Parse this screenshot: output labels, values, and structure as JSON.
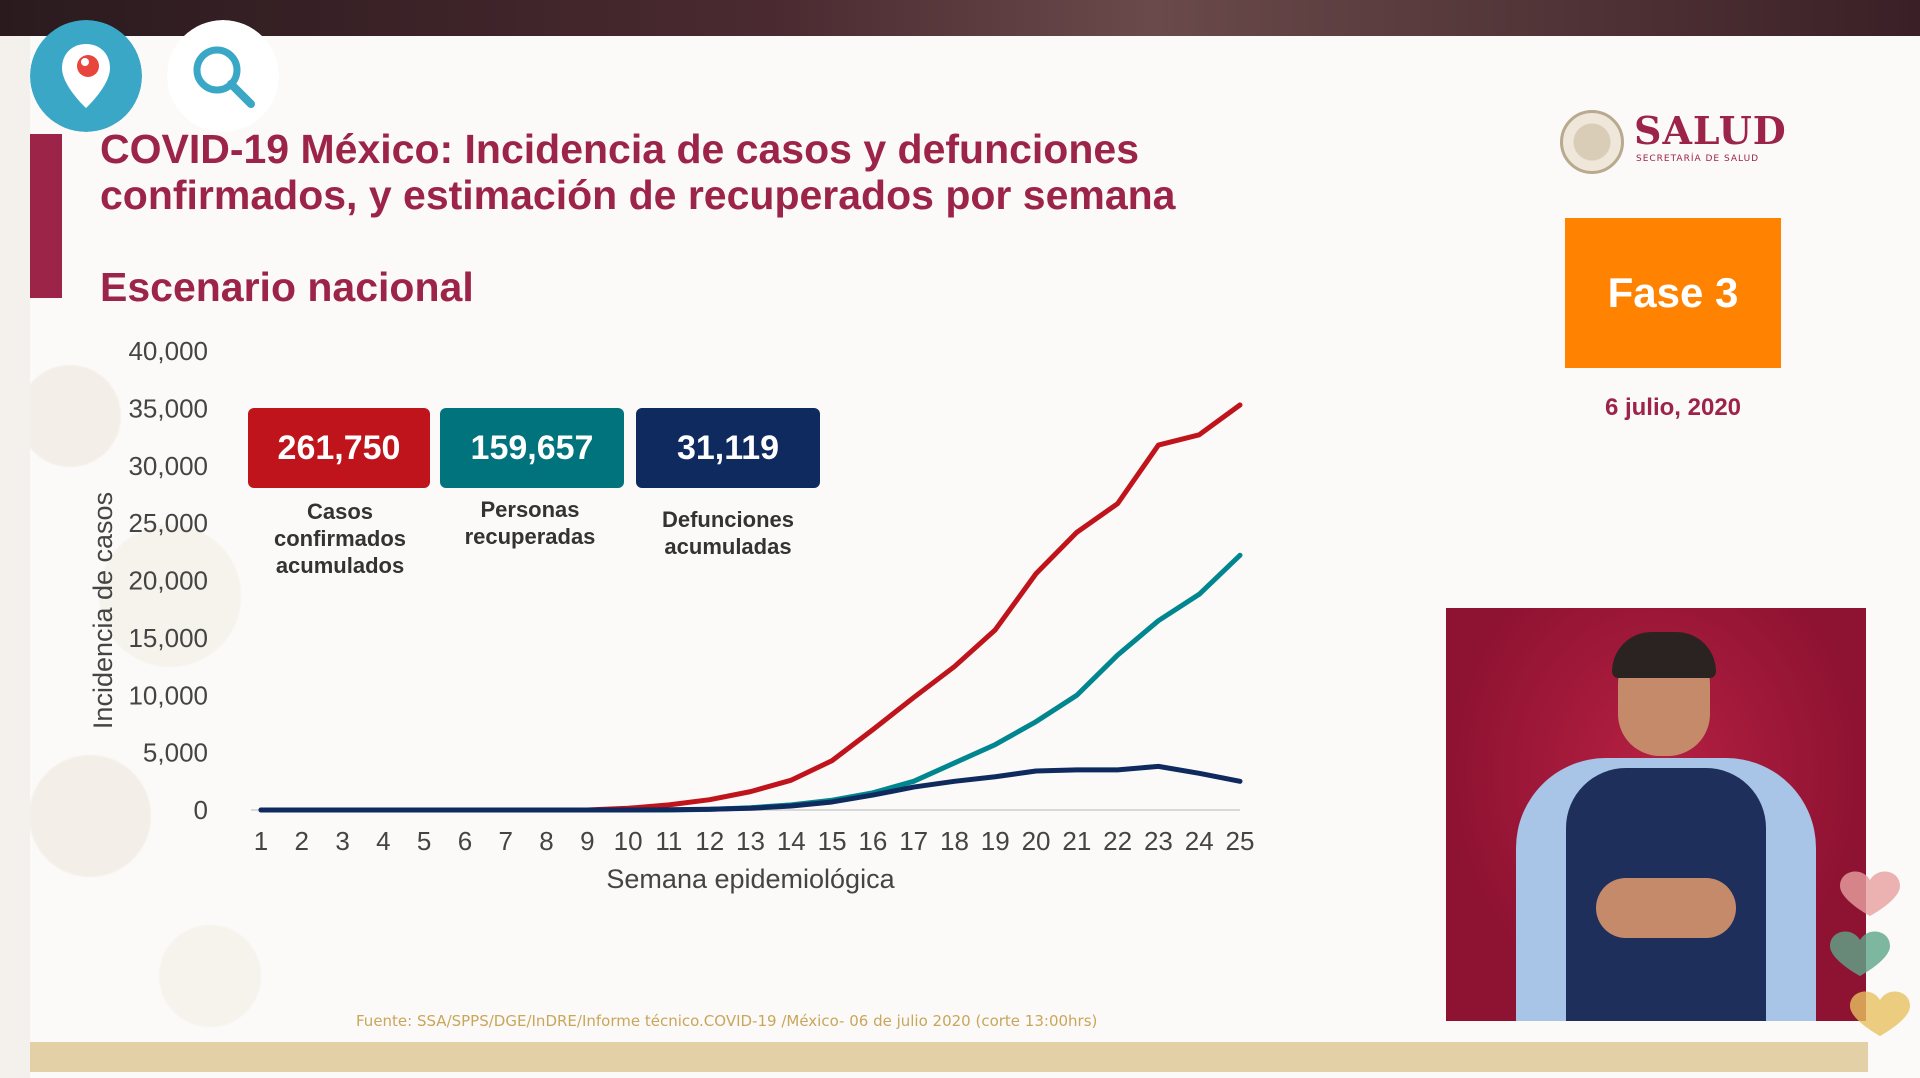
{
  "slide": {
    "title_line1": "COVID-19 México: Incidencia de casos y defunciones",
    "title_line2": "confirmados, y estimación de recuperados por semana",
    "subtitle": "Escenario nacional",
    "logo_text": "SALUD",
    "logo_subtext": "SECRETARÍA DE SALUD",
    "phase_badge": "Fase 3",
    "date": "6 julio, 2020",
    "source": "Fuente: SSA/SPPS/DGE/InDRE/Informe técnico.COVID-19 /México- 06 de julio 2020 (corte 13:00hrs)"
  },
  "kpis": [
    {
      "value": "261,750",
      "label_line1": "Casos",
      "label_line2": "confirmados",
      "label_line3": "acumulados",
      "color": "#c0141c"
    },
    {
      "value": "159,657",
      "label_line1": "Personas",
      "label_line2": "recuperadas",
      "label_line3": "",
      "color": "#00737c"
    },
    {
      "value": "31,119",
      "label_line1": "Defunciones",
      "label_line2": "acumuladas",
      "label_line3": "",
      "color": "#0e2a5e"
    }
  ],
  "colors": {
    "accent": "#9d2449",
    "phase": "#ff8200",
    "cases": "#c0141c",
    "recovered": "#00868f",
    "deaths": "#0e2a5e"
  },
  "chart_data": {
    "type": "line",
    "xlabel": "Semana epidemiológica",
    "ylabel": "Incidencia de casos",
    "x": [
      1,
      2,
      3,
      4,
      5,
      6,
      7,
      8,
      9,
      10,
      11,
      12,
      13,
      14,
      15,
      16,
      17,
      18,
      19,
      20,
      21,
      22,
      23,
      24,
      25
    ],
    "ylim": [
      0,
      40000
    ],
    "yticks": [
      0,
      5000,
      10000,
      15000,
      20000,
      25000,
      30000,
      35000,
      40000
    ],
    "ytick_labels": [
      "0",
      "5,000",
      "10,000",
      "15,000",
      "20,000",
      "25,000",
      "30,000",
      "35,000",
      "40,000"
    ],
    "grid": false,
    "series": [
      {
        "name": "Casos confirmados acumulados",
        "color": "#c0141c",
        "values": [
          0,
          0,
          0,
          0,
          0,
          0,
          0,
          0,
          0,
          150,
          450,
          900,
          1600,
          2600,
          4300,
          7000,
          9800,
          12500,
          15700,
          20600,
          24200,
          26700,
          31800,
          32700,
          35300
        ]
      },
      {
        "name": "Personas recuperadas",
        "color": "#00868f",
        "values": [
          0,
          0,
          0,
          0,
          0,
          0,
          0,
          0,
          0,
          0,
          0,
          50,
          200,
          450,
          850,
          1500,
          2500,
          4100,
          5700,
          7700,
          10000,
          13500,
          16500,
          18800,
          22200
        ]
      },
      {
        "name": "Defunciones acumuladas",
        "color": "#0e2a5e",
        "values": [
          0,
          0,
          0,
          0,
          0,
          0,
          0,
          0,
          0,
          0,
          20,
          60,
          150,
          350,
          700,
          1300,
          2000,
          2500,
          2900,
          3400,
          3500,
          3500,
          3800,
          3200,
          2500
        ]
      }
    ]
  }
}
